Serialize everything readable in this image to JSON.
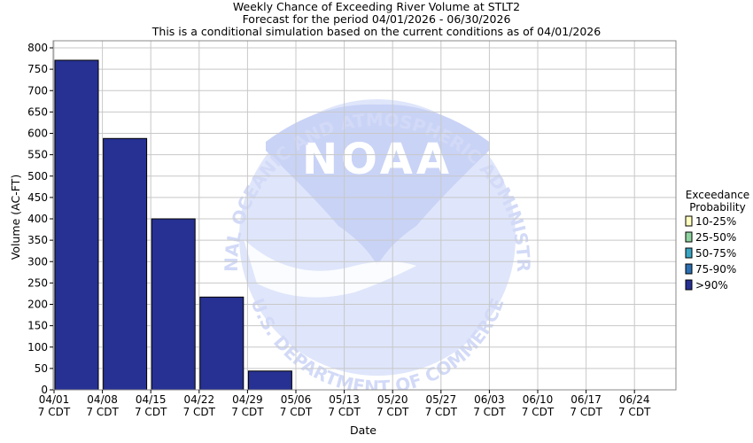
{
  "chart_data": {
    "type": "bar",
    "title_lines": [
      "Weekly Chance of Exceeding River Volume at STLT2",
      "Forecast for the period 04/01/2026 - 06/30/2026",
      "This is a conditional simulation based on the current conditions as of 04/01/2026"
    ],
    "xlabel": "Date",
    "ylabel": "Volume (AC-FT)",
    "ylim": [
      0,
      810
    ],
    "yticks": [
      0,
      50,
      100,
      150,
      200,
      250,
      300,
      350,
      400,
      450,
      500,
      550,
      600,
      650,
      700,
      750,
      800
    ],
    "grid": true,
    "categories": [
      {
        "date": "04/01",
        "sub": "7 CDT"
      },
      {
        "date": "04/08",
        "sub": "7 CDT"
      },
      {
        "date": "04/15",
        "sub": "7 CDT"
      },
      {
        "date": "04/22",
        "sub": "7 CDT"
      },
      {
        "date": "04/29",
        "sub": "7 CDT"
      },
      {
        "date": "05/06",
        "sub": "7 CDT"
      },
      {
        "date": "05/13",
        "sub": "7 CDT"
      },
      {
        "date": "05/20",
        "sub": "7 CDT"
      },
      {
        "date": "05/27",
        "sub": "7 CDT"
      },
      {
        "date": "06/03",
        "sub": "7 CDT"
      },
      {
        "date": "06/10",
        "sub": "7 CDT"
      },
      {
        "date": "06/17",
        "sub": "7 CDT"
      },
      {
        "date": "06/24",
        "sub": "7 CDT"
      }
    ],
    "series": [
      {
        "name": ">90%",
        "color": "#263193",
        "values": [
          771,
          588,
          400,
          217,
          44,
          0,
          0,
          0,
          0,
          0,
          0,
          0,
          0
        ]
      }
    ],
    "legend": {
      "title_lines": [
        "Exceedance",
        "Probability"
      ],
      "placement": "right",
      "items": [
        {
          "label": "10-25%",
          "color": "#ffffc0"
        },
        {
          "label": "25-50%",
          "color": "#8fd3a0"
        },
        {
          "label": "50-75%",
          "color": "#3aa6c4"
        },
        {
          "label": "75-90%",
          "color": "#2c6fb2"
        },
        {
          "label": ">90%",
          "color": "#263193"
        }
      ]
    }
  },
  "watermark": {
    "logo_text": "NOAA",
    "ring_top": "NATIONAL OCEANIC AND ATMOSPHERIC ADMINISTRATION",
    "ring_bottom": "U.S. DEPARTMENT OF COMMERCE"
  }
}
